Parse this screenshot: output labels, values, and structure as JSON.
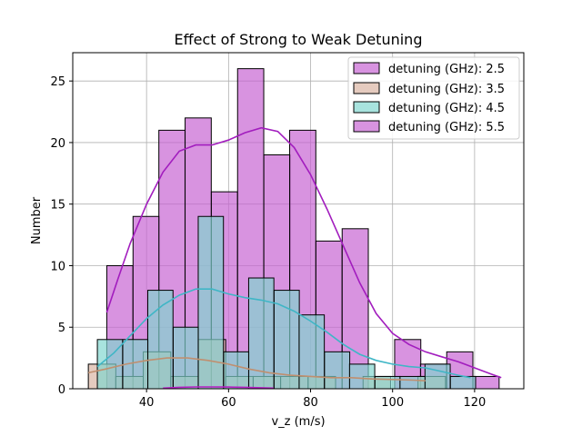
{
  "chart_data": {
    "type": "histogram",
    "title": "Effect of Strong to Weak Detuning",
    "xlabel": "v_z (m/s)",
    "ylabel": "Number",
    "xlim": [
      22,
      132
    ],
    "ylim": [
      0,
      27.3
    ],
    "xticks": [
      40,
      60,
      80,
      100,
      120
    ],
    "yticks": [
      0,
      5,
      10,
      15,
      20,
      25
    ],
    "grid": true,
    "legend_position": "top-right",
    "series": [
      {
        "name": "detuning (GHz): 2.5",
        "color": "#c560d1",
        "bin_width": 6.38,
        "bins": [
          [
            30.3,
            10
          ],
          [
            36.7,
            14
          ],
          [
            43.0,
            21
          ],
          [
            49.4,
            22
          ],
          [
            55.8,
            16
          ],
          [
            62.2,
            26
          ],
          [
            68.6,
            19
          ],
          [
            74.9,
            21
          ],
          [
            81.3,
            12
          ],
          [
            87.7,
            13
          ],
          [
            94.1,
            0
          ],
          [
            100.5,
            4
          ],
          [
            106.8,
            2
          ],
          [
            113.2,
            3
          ],
          [
            119.6,
            1
          ]
        ],
        "kde": [
          [
            30.3,
            6.2
          ],
          [
            33,
            8.9
          ],
          [
            36,
            11.8
          ],
          [
            40,
            15.0
          ],
          [
            44,
            17.6
          ],
          [
            48,
            19.3
          ],
          [
            52,
            19.8
          ],
          [
            56,
            19.8
          ],
          [
            60,
            20.2
          ],
          [
            64,
            20.8
          ],
          [
            68,
            21.2
          ],
          [
            72,
            20.9
          ],
          [
            76,
            19.6
          ],
          [
            80,
            17.4
          ],
          [
            84,
            14.6
          ],
          [
            88,
            11.6
          ],
          [
            92,
            8.6
          ],
          [
            96,
            6.1
          ],
          [
            100,
            4.5
          ],
          [
            104,
            3.6
          ],
          [
            108,
            3.0
          ],
          [
            112,
            2.6
          ],
          [
            116,
            2.2
          ],
          [
            120,
            1.7
          ],
          [
            124,
            1.2
          ],
          [
            126.5,
            0.9
          ]
        ]
      },
      {
        "name": "detuning (GHz): 3.5",
        "color": "#d9b3a0",
        "bin_width": 6.7,
        "bins": [
          [
            25.8,
            2
          ],
          [
            32.5,
            1
          ],
          [
            39.2,
            3
          ],
          [
            45.9,
            1
          ],
          [
            52.6,
            4
          ],
          [
            59.3,
            1
          ],
          [
            66.0,
            1
          ],
          [
            72.7,
            1
          ],
          [
            79.4,
            1
          ],
          [
            86.1,
            0
          ],
          [
            92.8,
            1
          ],
          [
            99.5,
            0
          ],
          [
            106.2,
            1
          ]
        ],
        "kde": [
          [
            25.8,
            1.3
          ],
          [
            30,
            1.6
          ],
          [
            35,
            2.0
          ],
          [
            40,
            2.3
          ],
          [
            45,
            2.5
          ],
          [
            50,
            2.5
          ],
          [
            55,
            2.3
          ],
          [
            60,
            2.0
          ],
          [
            65,
            1.6
          ],
          [
            70,
            1.3
          ],
          [
            75,
            1.1
          ],
          [
            80,
            1.0
          ],
          [
            85,
            0.9
          ],
          [
            90,
            0.9
          ],
          [
            95,
            0.8
          ],
          [
            100,
            0.75
          ],
          [
            105,
            0.7
          ],
          [
            108,
            0.65
          ]
        ]
      },
      {
        "name": "detuning (GHz): 4.5",
        "color": "#7fd6cf",
        "bin_width": 6.15,
        "bins": [
          [
            28.0,
            4
          ],
          [
            34.2,
            4
          ],
          [
            40.3,
            8
          ],
          [
            46.5,
            5
          ],
          [
            52.6,
            14
          ],
          [
            58.8,
            3
          ],
          [
            64.9,
            9
          ],
          [
            71.1,
            8
          ],
          [
            77.2,
            6
          ],
          [
            83.4,
            3
          ],
          [
            89.5,
            2
          ],
          [
            95.7,
            1
          ],
          [
            101.8,
            1
          ],
          [
            107.9,
            2
          ],
          [
            114.1,
            1
          ]
        ],
        "kde": [
          [
            28.0,
            1.8
          ],
          [
            32,
            2.9
          ],
          [
            36,
            4.3
          ],
          [
            40,
            5.7
          ],
          [
            44,
            6.8
          ],
          [
            48,
            7.6
          ],
          [
            52,
            8.1
          ],
          [
            56,
            8.1
          ],
          [
            60,
            7.7
          ],
          [
            64,
            7.4
          ],
          [
            68,
            7.2
          ],
          [
            72,
            6.9
          ],
          [
            76,
            6.3
          ],
          [
            80,
            5.5
          ],
          [
            84,
            4.6
          ],
          [
            88,
            3.6
          ],
          [
            92,
            2.8
          ],
          [
            96,
            2.3
          ],
          [
            100,
            2.0
          ],
          [
            104,
            1.8
          ],
          [
            108,
            1.7
          ],
          [
            112,
            1.4
          ],
          [
            116,
            1.1
          ],
          [
            119,
            0.9
          ]
        ]
      },
      {
        "name": "detuning (GHz): 5.5",
        "color": "#c560d1",
        "bin_width": 6.2,
        "bins": [
          [
            34.0,
            0
          ],
          [
            40.2,
            0
          ],
          [
            46.4,
            0
          ],
          [
            52.6,
            0
          ],
          [
            58.8,
            0
          ],
          [
            65.0,
            0
          ]
        ],
        "kde": [
          [
            44,
            0.05
          ],
          [
            48,
            0.12
          ],
          [
            52,
            0.15
          ],
          [
            56,
            0.15
          ],
          [
            60,
            0.14
          ],
          [
            64,
            0.12
          ],
          [
            68,
            0.08
          ],
          [
            71,
            0.05
          ]
        ]
      }
    ]
  },
  "legend": {
    "entries": [
      {
        "label": "detuning (GHz): 2.5",
        "color": "#c560d1"
      },
      {
        "label": "detuning (GHz): 3.5",
        "color": "#d9b3a0"
      },
      {
        "label": "detuning (GHz): 4.5",
        "color": "#7fd6cf"
      },
      {
        "label": "detuning (GHz): 5.5",
        "color": "#c560d1"
      }
    ]
  },
  "line_colors": [
    "#a21dbe",
    "#c08f6f",
    "#3fb6c6",
    "#b61fc4"
  ]
}
